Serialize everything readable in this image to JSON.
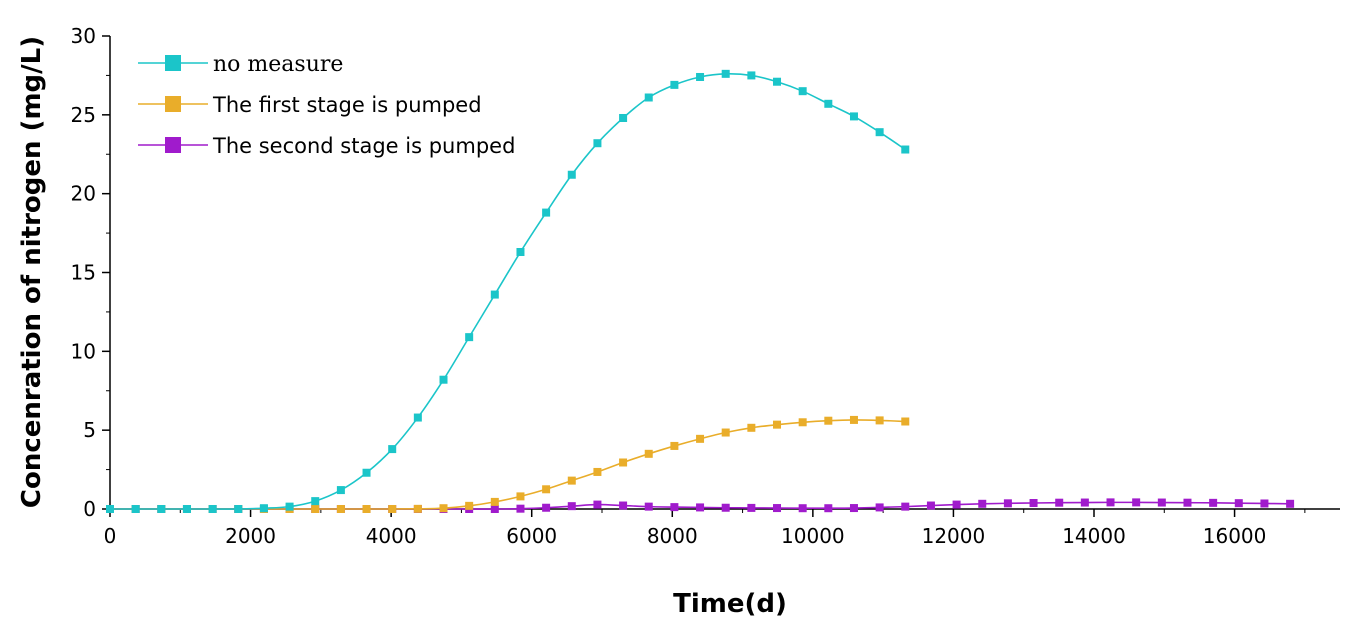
{
  "chart_data": {
    "type": "line",
    "title": "",
    "xlabel": "Time(d)",
    "ylabel": "Concenration of nitrogen (mg/L)",
    "xlim": [
      0,
      17500
    ],
    "ylim": [
      0,
      30
    ],
    "xticks": [
      0,
      2000,
      4000,
      6000,
      8000,
      10000,
      12000,
      14000,
      16000
    ],
    "yticks": [
      0,
      5,
      10,
      15,
      20,
      25,
      30
    ],
    "grid": false,
    "legend_position": "top-left",
    "series": [
      {
        "name": "no measure",
        "color": "#1bc5c9",
        "x": [
          0,
          365,
          730,
          1095,
          1460,
          1825,
          2190,
          2555,
          2920,
          3285,
          3650,
          4015,
          4380,
          4745,
          5110,
          5475,
          5840,
          6205,
          6570,
          6935,
          7300,
          7665,
          8030,
          8395,
          8760,
          9125,
          9490,
          9855,
          10220,
          10585,
          10950,
          11315
        ],
        "y": [
          0,
          0,
          0,
          0,
          0,
          0,
          0.05,
          0.15,
          0.5,
          1.2,
          2.3,
          3.8,
          5.8,
          8.2,
          10.9,
          13.6,
          16.3,
          18.8,
          21.2,
          23.2,
          24.8,
          26.1,
          26.9,
          27.4,
          27.6,
          27.5,
          27.1,
          26.5,
          25.7,
          24.9,
          23.9,
          22.8
        ]
      },
      {
        "name": "The first stage is pumped",
        "color": "#e9ad2a",
        "x": [
          0,
          365,
          730,
          1095,
          1460,
          1825,
          2190,
          2555,
          2920,
          3285,
          3650,
          4015,
          4380,
          4745,
          5110,
          5475,
          5840,
          6205,
          6570,
          6935,
          7300,
          7665,
          8030,
          8395,
          8760,
          9125,
          9490,
          9855,
          10220,
          10585,
          10950,
          11315
        ],
        "y": [
          0,
          0,
          0,
          0,
          0,
          0,
          0,
          0,
          0,
          0,
          0,
          0,
          0.01,
          0.05,
          0.2,
          0.45,
          0.8,
          1.25,
          1.8,
          2.35,
          2.95,
          3.5,
          4.0,
          4.45,
          4.85,
          5.15,
          5.35,
          5.5,
          5.6,
          5.65,
          5.62,
          5.55
        ]
      },
      {
        "name": "The second stage is pumped",
        "color": "#a01bcc",
        "x": [
          0,
          365,
          730,
          1095,
          1460,
          1825,
          2190,
          2555,
          2920,
          3285,
          3650,
          4015,
          4380,
          4745,
          5110,
          5475,
          5840,
          6205,
          6570,
          6935,
          7300,
          7665,
          8030,
          8395,
          8760,
          9125,
          9490,
          9855,
          10220,
          10585,
          10950,
          11315,
          11680,
          12045,
          12410,
          12775,
          13140,
          13505,
          13870,
          14235,
          14600,
          14965,
          15330,
          15695,
          16060,
          16425,
          16790
        ],
        "y": [
          0,
          0,
          0,
          0,
          0,
          0,
          0,
          0,
          0,
          0,
          0,
          0,
          0,
          0,
          0,
          0,
          0.02,
          0.08,
          0.18,
          0.28,
          0.22,
          0.15,
          0.12,
          0.1,
          0.08,
          0.07,
          0.06,
          0.05,
          0.05,
          0.06,
          0.1,
          0.15,
          0.22,
          0.28,
          0.33,
          0.36,
          0.38,
          0.4,
          0.41,
          0.42,
          0.42,
          0.41,
          0.4,
          0.39,
          0.37,
          0.35,
          0.33
        ]
      }
    ]
  }
}
